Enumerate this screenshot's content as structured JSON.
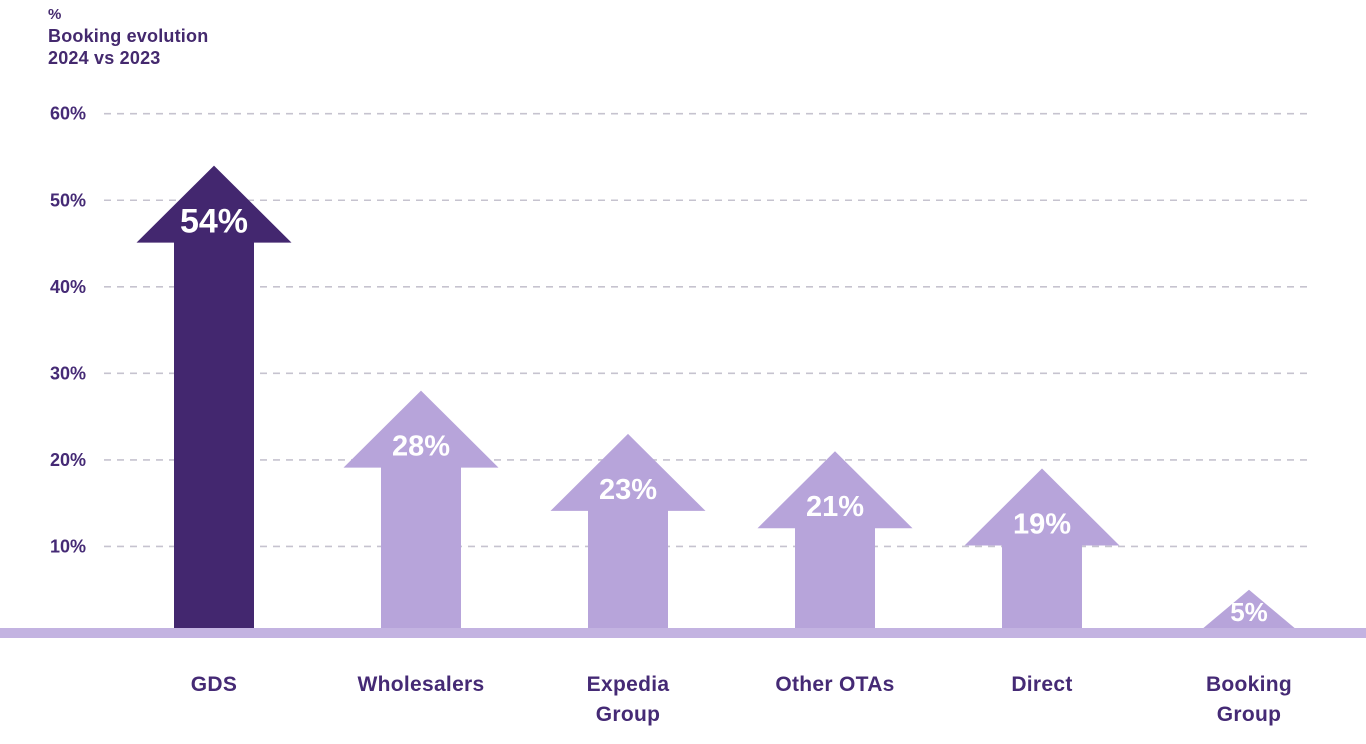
{
  "chart_data": {
    "type": "bar",
    "style": "upward-arrow-bars",
    "unit_label": "%",
    "title": "Booking evolution",
    "subtitle": "2024 vs 2023",
    "categories": [
      "GDS",
      "Wholesalers",
      "Expedia Group",
      "Other OTAs",
      "Direct",
      "Booking Group"
    ],
    "category_label_lines": [
      [
        "GDS"
      ],
      [
        "Wholesalers"
      ],
      [
        "Expedia",
        "Group"
      ],
      [
        "Other OTAs"
      ],
      [
        "Direct"
      ],
      [
        "Booking",
        "Group"
      ]
    ],
    "values": [
      54,
      28,
      23,
      21,
      19,
      5
    ],
    "value_labels": [
      "54%",
      "28%",
      "23%",
      "21%",
      "19%",
      "5%"
    ],
    "highlight_index": 0,
    "y_axis": {
      "min": 0,
      "max": 60,
      "ticks": [
        {
          "label": "60%",
          "value": 60
        },
        {
          "label": "50%",
          "value": 50
        },
        {
          "label": "40%",
          "value": 40
        },
        {
          "label": "30%",
          "value": 30
        },
        {
          "label": "20%",
          "value": 20
        },
        {
          "label": "10%",
          "value": 10
        }
      ],
      "gridlines": "dashed"
    },
    "legend": "none",
    "colors": {
      "highlight_bar": "#43276f",
      "bar": "#b7a4da",
      "baseline_bar": "#c3b3e1",
      "text": "#452a75",
      "value_text": "#ffffff",
      "gridline": "#c6c3cf"
    }
  }
}
